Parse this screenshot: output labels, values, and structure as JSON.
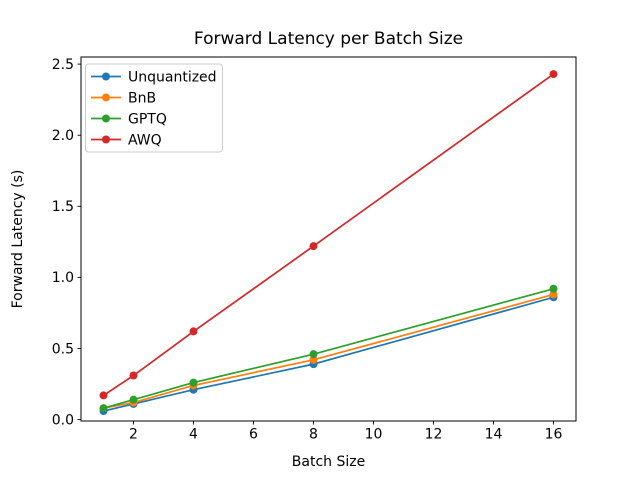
{
  "chart_data": {
    "type": "line",
    "title": "Forward Latency per Batch Size",
    "xlabel": "Batch Size",
    "ylabel": "Forward Latency (s)",
    "x": [
      1,
      2,
      4,
      8,
      16
    ],
    "series": [
      {
        "name": "Unquantized",
        "color": "#1f77b4",
        "values": [
          0.06,
          0.11,
          0.21,
          0.39,
          0.86
        ]
      },
      {
        "name": "BnB",
        "color": "#ff7f0e",
        "values": [
          0.08,
          0.12,
          0.24,
          0.42,
          0.88
        ]
      },
      {
        "name": "GPTQ",
        "color": "#2ca02c",
        "values": [
          0.08,
          0.14,
          0.26,
          0.46,
          0.92
        ]
      },
      {
        "name": "AWQ",
        "color": "#d62728",
        "values": [
          0.17,
          0.31,
          0.62,
          1.22,
          2.43
        ]
      }
    ],
    "xtick_values": [
      2,
      4,
      6,
      8,
      10,
      12,
      14,
      16
    ],
    "xtick_labels": [
      "2",
      "4",
      "6",
      "8",
      "10",
      "12",
      "14",
      "16"
    ],
    "ytick_values": [
      0,
      0.5,
      1.0,
      1.5,
      2.0,
      2.5
    ],
    "ytick_labels": [
      "0.0",
      "0.5",
      "1.0",
      "1.5",
      "2.0",
      "2.5"
    ],
    "xlim": [
      0.25,
      16.75
    ],
    "ylim": [
      -0.01,
      2.55
    ],
    "legend_position": "upper left",
    "marker": "circle",
    "grid": false,
    "axis_color": "#000000",
    "legend_edge_color": "#cccccc",
    "background_color": "#ffffff"
  }
}
